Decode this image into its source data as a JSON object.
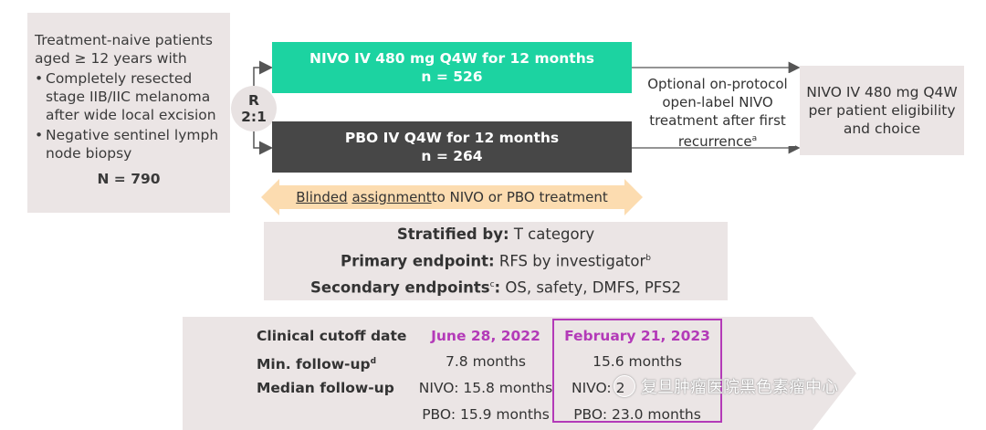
{
  "patients": {
    "intro": "Treatment-naive patients aged ≥ 12 years with",
    "bullets": [
      "Completely resected stage IIB/IIC melanoma after wide local excision",
      "Negative sentinel lymph node biopsy"
    ],
    "n": "N = 790"
  },
  "randomization": {
    "r": "R",
    "ratio": "2:1"
  },
  "arms": {
    "nivo": {
      "line1": "NIVO IV 480 mg Q4W for 12 months",
      "line2": "n = 526",
      "color": "#1cd3a1"
    },
    "pbo": {
      "line1": "PBO IV Q4W for 12 months",
      "line2": "n = 264",
      "color": "#474747"
    }
  },
  "optional": {
    "text": "Optional on-protocol open-label NIVO treatment after first recurrence",
    "sup": "a"
  },
  "final": {
    "line1": "NIVO IV 480 mg Q4W",
    "line2": "per patient eligibility and choice"
  },
  "blinded": {
    "word1": "Blinded",
    "word2": "assignment",
    "rest": " to NIVO or PBO treatment"
  },
  "stratification": {
    "strat_label": "Stratified by:",
    "strat_value": " T category",
    "primary_label": "Primary endpoint:",
    "primary_value": " RFS by investigator",
    "primary_sup": "b",
    "secondary_label": "Secondary endpoints",
    "secondary_sup": "c",
    "secondary_colon": ":",
    "secondary_value": " OS, safety, DMFS, PFS2"
  },
  "followup": {
    "labels": {
      "cutoff": "Clinical cutoff date",
      "min": "Min. follow-up",
      "min_sup": "d",
      "median": "Median follow-up"
    },
    "col1": {
      "date": "June 28, 2022",
      "min": "7.8 months",
      "nivo": "NIVO: 15.8 months",
      "pbo": "PBO: 15.9 months"
    },
    "col2": {
      "date": "February 21, 2023",
      "min": "15.6 months",
      "nivo": "NIVO: 2",
      "pbo": "PBO: 23.0 months"
    },
    "highlight_color": "#b33ab8"
  },
  "watermark": "复旦肿瘤医院黑色素瘤中心"
}
